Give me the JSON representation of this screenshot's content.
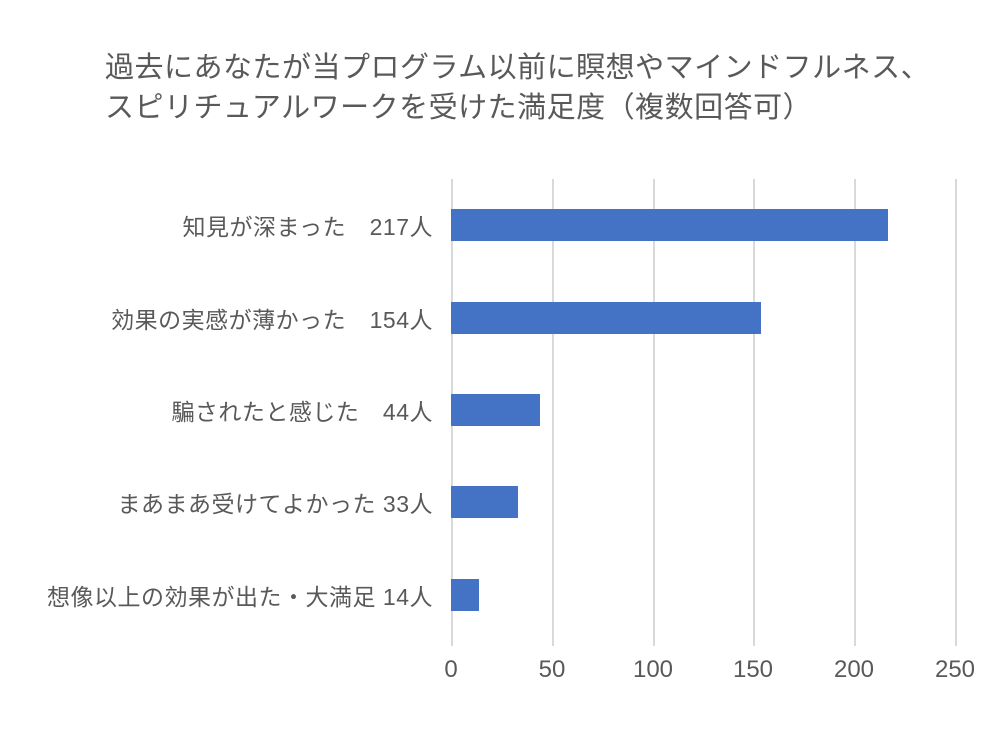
{
  "chart_data": {
    "type": "bar",
    "orientation": "horizontal",
    "title": "過去にあなたが当プログラム以前に瞑想やマインドフルネス、スピリチュアルワークを受けた満足度（複数回答可）",
    "title_line1": "過去にあなたが当プログラム以前に瞑想やマインドフルネス、",
    "title_line2": "スピリチュアルワークを受けた満足度（複数回答可）",
    "categories": [
      "知見が深まった　217人",
      "効果の実感が薄かった　154人",
      "騙されたと感じた　44人",
      "まあまあ受けてよかった 33人",
      "想像以上の効果が出た・大満足 14人"
    ],
    "values": [
      217,
      154,
      44,
      33,
      14
    ],
    "units_suffix": "人",
    "x_ticks": [
      0,
      50,
      100,
      150,
      200,
      250
    ],
    "xlim": [
      0,
      250
    ],
    "grid": true,
    "legend_position": "none",
    "colors": {
      "bar": "#4472C4",
      "gridline": "#D9D9D9",
      "text": "#595959",
      "background": "#FFFFFF"
    }
  }
}
